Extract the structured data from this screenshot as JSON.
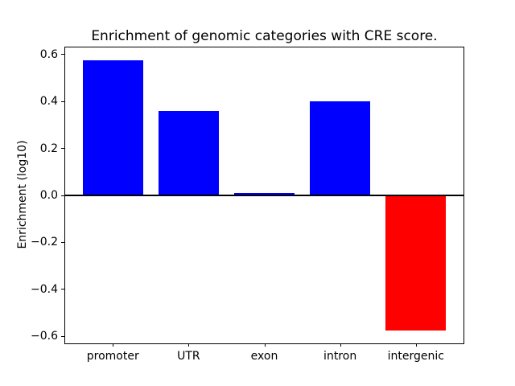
{
  "chart_data": {
    "type": "bar",
    "title": "Enrichment of genomic categories with CRE score.",
    "xlabel": "",
    "ylabel": "Enrichment (log10)",
    "categories": [
      "promoter",
      "UTR",
      "exon",
      "intron",
      "intergenic"
    ],
    "values": [
      0.575,
      0.36,
      0.01,
      0.4,
      -0.575
    ],
    "bar_colors": [
      "#0000ff",
      "#0000ff",
      "#0000ff",
      "#0000ff",
      "#ff0000"
    ],
    "positive_color": "#0000ff",
    "negative_color": "#ff0000",
    "yticks": [
      -0.6,
      -0.4,
      -0.2,
      0.0,
      0.2,
      0.4,
      0.6
    ],
    "ylim": [
      -0.6325,
      0.6325
    ],
    "bar_width_fraction": 0.8,
    "grid": false,
    "legend": null,
    "zero_line": true,
    "zero_line_color": "#000000",
    "background_color": "#ffffff",
    "spine_color": "#000000"
  }
}
